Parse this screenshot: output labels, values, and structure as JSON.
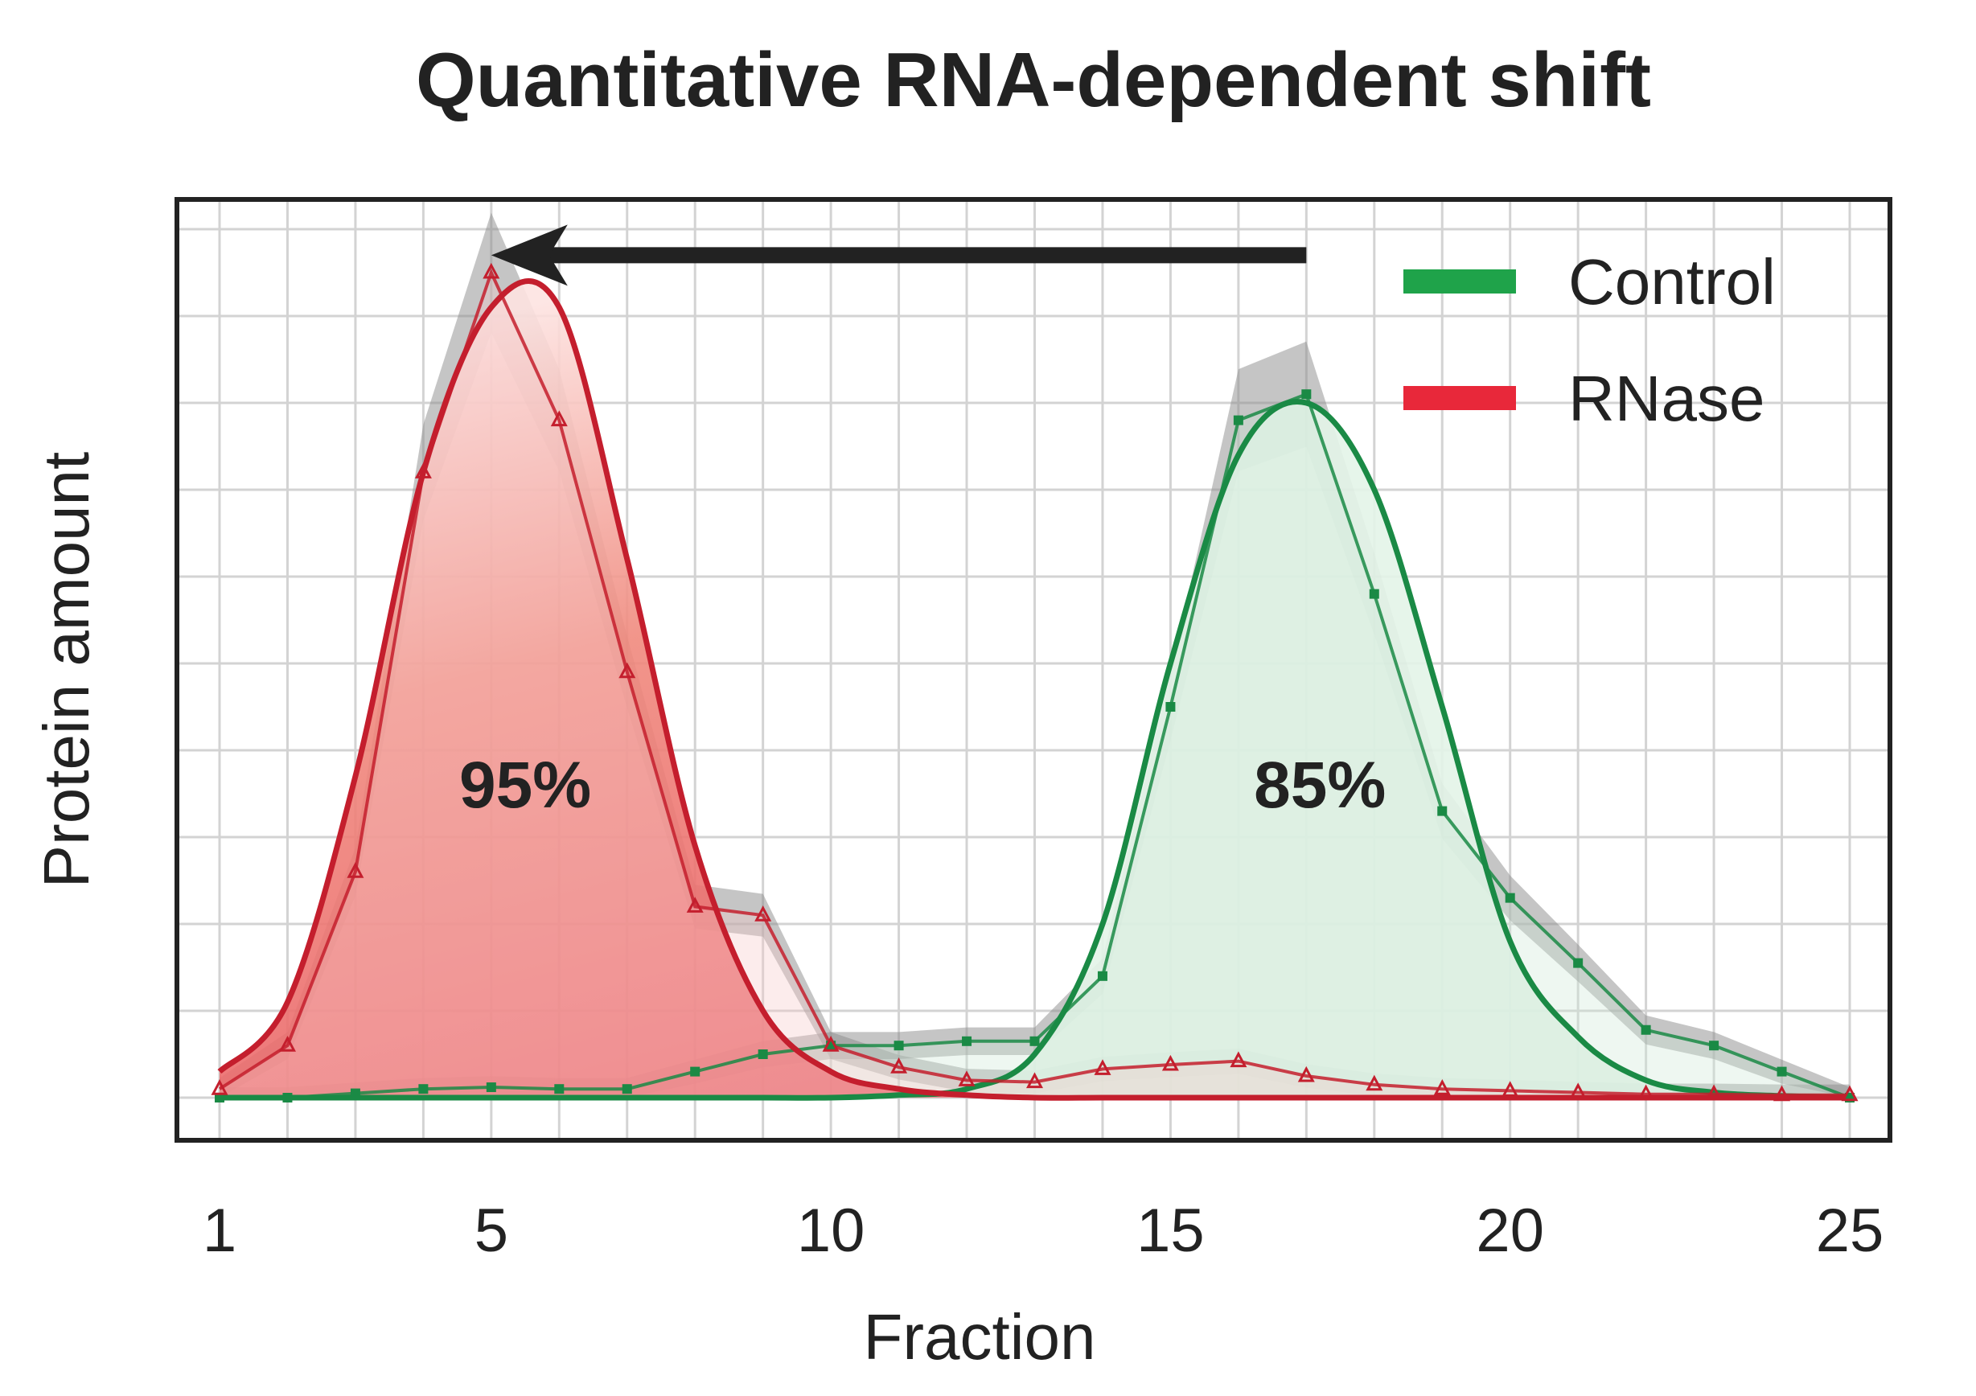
{
  "chart_data": {
    "type": "line",
    "title": "Quantitative RNA-dependent shift",
    "xlabel": "Fraction",
    "ylabel": "Protein amount",
    "x": [
      1,
      2,
      3,
      4,
      5,
      6,
      7,
      8,
      9,
      10,
      11,
      12,
      13,
      14,
      15,
      16,
      17,
      18,
      19,
      20,
      21,
      22,
      23,
      24,
      25
    ],
    "xticks": [
      1,
      5,
      10,
      15,
      20,
      25
    ],
    "xlim": [
      1,
      25
    ],
    "ylim": [
      0,
      1.0
    ],
    "grid": true,
    "legend_position": "top-right",
    "series": [
      {
        "name": "Control",
        "color": "#1fa34a",
        "marker": "square",
        "values": [
          0.0,
          0.0,
          0.005,
          0.01,
          0.012,
          0.01,
          0.01,
          0.03,
          0.05,
          0.06,
          0.06,
          0.065,
          0.065,
          0.14,
          0.45,
          0.78,
          0.81,
          0.58,
          0.33,
          0.23,
          0.155,
          0.078,
          0.06,
          0.03,
          0.0
        ],
        "fit": [
          0,
          0,
          0,
          0,
          0,
          0,
          0,
          0,
          0,
          0,
          0.003,
          0.01,
          0.05,
          0.2,
          0.5,
          0.74,
          0.8,
          0.7,
          0.45,
          0.18,
          0.07,
          0.02,
          0.006,
          0.002,
          0
        ]
      },
      {
        "name": "RNase",
        "color": "#e8283a",
        "marker": "triangle",
        "values": [
          0.01,
          0.06,
          0.26,
          0.72,
          0.95,
          0.78,
          0.49,
          0.22,
          0.21,
          0.06,
          0.035,
          0.02,
          0.018,
          0.033,
          0.038,
          0.042,
          0.025,
          0.015,
          0.01,
          0.008,
          0.006,
          0.004,
          0.004,
          0.003,
          0.003
        ],
        "fit": [
          0.03,
          0.11,
          0.37,
          0.72,
          0.91,
          0.91,
          0.62,
          0.29,
          0.1,
          0.03,
          0.01,
          0.003,
          0,
          0,
          0,
          0,
          0,
          0,
          0,
          0,
          0,
          0,
          0,
          0,
          0
        ]
      }
    ],
    "annotations": [
      {
        "text": "95%",
        "x": 5.5,
        "y": 0.36
      },
      {
        "text": "85%",
        "x": 17.2,
        "y": 0.36
      },
      {
        "type": "arrow",
        "from_x": 17,
        "to_x": 5,
        "y": 0.97
      }
    ]
  }
}
